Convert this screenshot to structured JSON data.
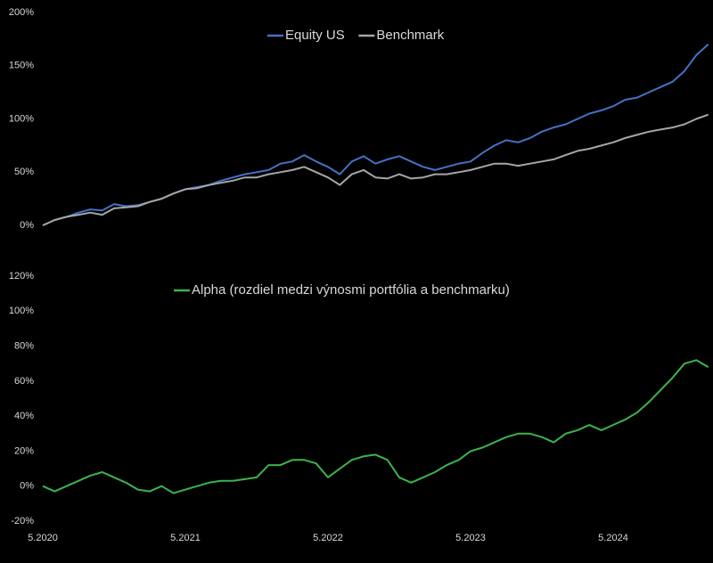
{
  "chart_data": [
    {
      "type": "line",
      "x": [
        "2020-05",
        "2020-06",
        "2020-07",
        "2020-08",
        "2020-09",
        "2020-10",
        "2020-11",
        "2020-12",
        "2021-01",
        "2021-02",
        "2021-03",
        "2021-04",
        "2021-05",
        "2021-06",
        "2021-07",
        "2021-08",
        "2021-09",
        "2021-10",
        "2021-11",
        "2021-12",
        "2022-01",
        "2022-02",
        "2022-03",
        "2022-04",
        "2022-05",
        "2022-06",
        "2022-07",
        "2022-08",
        "2022-09",
        "2022-10",
        "2022-11",
        "2022-12",
        "2023-01",
        "2023-02",
        "2023-03",
        "2023-04",
        "2023-05",
        "2023-06",
        "2023-07",
        "2023-08",
        "2023-09",
        "2023-10",
        "2023-11",
        "2023-12",
        "2024-01",
        "2024-02",
        "2024-03",
        "2024-04",
        "2024-05",
        "2024-06",
        "2024-07",
        "2024-08",
        "2024-09",
        "2024-10",
        "2024-11",
        "2024-12",
        "2025-01"
      ],
      "series": [
        {
          "name": "Equity US",
          "color": "#4472c4",
          "values": [
            0,
            5,
            8,
            12,
            15,
            14,
            20,
            18,
            19,
            22,
            25,
            30,
            34,
            36,
            38,
            42,
            45,
            48,
            50,
            52,
            58,
            60,
            66,
            60,
            55,
            48,
            60,
            65,
            58,
            62,
            65,
            60,
            55,
            52,
            55,
            58,
            60,
            68,
            75,
            80,
            78,
            82,
            88,
            92,
            95,
            100,
            105,
            108,
            112,
            118,
            120,
            125,
            130,
            135,
            145,
            160,
            170
          ]
        },
        {
          "name": "Benchmark",
          "color": "#a6a6a6",
          "values": [
            0,
            5,
            8,
            10,
            12,
            10,
            16,
            17,
            18,
            22,
            25,
            30,
            34,
            35,
            38,
            40,
            42,
            45,
            45,
            48,
            50,
            52,
            55,
            50,
            45,
            38,
            48,
            52,
            45,
            44,
            48,
            44,
            45,
            48,
            48,
            50,
            52,
            55,
            58,
            58,
            56,
            58,
            60,
            62,
            66,
            70,
            72,
            75,
            78,
            82,
            85,
            88,
            90,
            92,
            95,
            100,
            104
          ]
        }
      ],
      "ylim": [
        0,
        200
      ],
      "yticks": [
        {
          "value": 0,
          "label": "0%"
        },
        {
          "value": 50,
          "label": "50%"
        },
        {
          "value": 100,
          "label": "100%"
        },
        {
          "value": 150,
          "label": "150%"
        },
        {
          "value": 200,
          "label": "200%"
        }
      ],
      "legend": "top"
    },
    {
      "type": "line",
      "x": [
        "2020-05",
        "2020-06",
        "2020-07",
        "2020-08",
        "2020-09",
        "2020-10",
        "2020-11",
        "2020-12",
        "2021-01",
        "2021-02",
        "2021-03",
        "2021-04",
        "2021-05",
        "2021-06",
        "2021-07",
        "2021-08",
        "2021-09",
        "2021-10",
        "2021-11",
        "2021-12",
        "2022-01",
        "2022-02",
        "2022-03",
        "2022-04",
        "2022-05",
        "2022-06",
        "2022-07",
        "2022-08",
        "2022-09",
        "2022-10",
        "2022-11",
        "2022-12",
        "2023-01",
        "2023-02",
        "2023-03",
        "2023-04",
        "2023-05",
        "2023-06",
        "2023-07",
        "2023-08",
        "2023-09",
        "2023-10",
        "2023-11",
        "2023-12",
        "2024-01",
        "2024-02",
        "2024-03",
        "2024-04",
        "2024-05",
        "2024-06",
        "2024-07",
        "2024-08",
        "2024-09",
        "2024-10",
        "2024-11",
        "2024-12",
        "2025-01"
      ],
      "series": [
        {
          "name": "Alpha (rozdiel medzi výnosmi portfólia a benchmarku)",
          "color": "#3cb44b",
          "values": [
            0,
            -3,
            0,
            3,
            6,
            8,
            5,
            2,
            -2,
            -3,
            0,
            -4,
            -2,
            0,
            2,
            3,
            3,
            4,
            5,
            12,
            12,
            15,
            15,
            13,
            5,
            10,
            15,
            17,
            18,
            15,
            5,
            2,
            5,
            8,
            12,
            15,
            20,
            22,
            25,
            28,
            30,
            30,
            28,
            25,
            30,
            32,
            35,
            32,
            35,
            38,
            42,
            48,
            55,
            62,
            70,
            72,
            68
          ]
        }
      ],
      "ylim": [
        -20,
        120
      ],
      "yticks": [
        {
          "value": -20,
          "label": "-20%"
        },
        {
          "value": 0,
          "label": "0%"
        },
        {
          "value": 20,
          "label": "20%"
        },
        {
          "value": 40,
          "label": "40%"
        },
        {
          "value": 60,
          "label": "60%"
        },
        {
          "value": 80,
          "label": "80%"
        },
        {
          "value": 100,
          "label": "100%"
        },
        {
          "value": 120,
          "label": "120%"
        }
      ],
      "xticks": [
        {
          "value": "2020-05",
          "label": "5.2020"
        },
        {
          "value": "2021-05",
          "label": "5.2021"
        },
        {
          "value": "2022-05",
          "label": "5.2022"
        },
        {
          "value": "2023-05",
          "label": "5.2023"
        },
        {
          "value": "2024-05",
          "label": "5.2024"
        }
      ],
      "legend": "top"
    }
  ]
}
